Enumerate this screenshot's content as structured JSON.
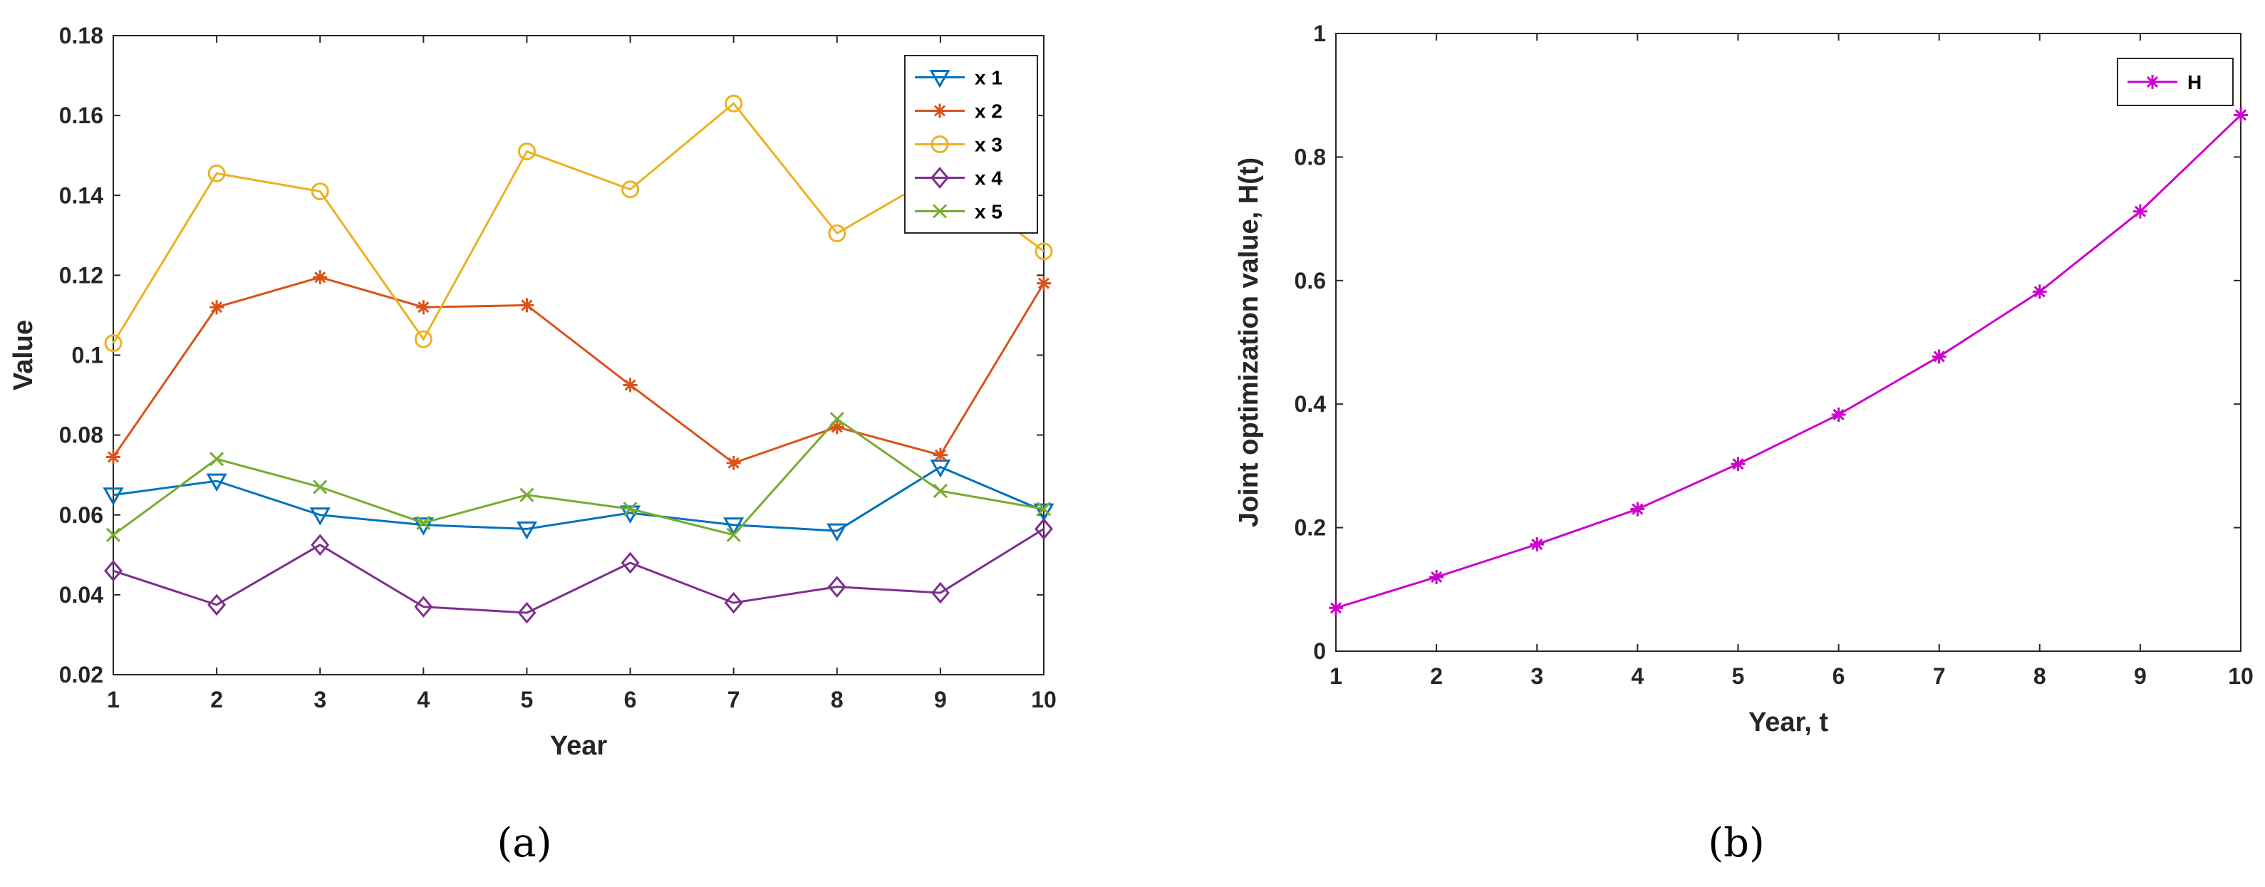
{
  "chart_data": [
    {
      "type": "line",
      "caption": "(a)",
      "xlabel": "Year",
      "ylabel": "Value",
      "x": [
        1,
        2,
        3,
        4,
        5,
        6,
        7,
        8,
        9,
        10
      ],
      "xlim": [
        1,
        10
      ],
      "ylim": [
        0.02,
        0.18
      ],
      "xticks": [
        "1",
        "2",
        "3",
        "4",
        "5",
        "6",
        "7",
        "8",
        "9",
        "10"
      ],
      "yticks": [
        "0.02",
        "0.04",
        "0.06",
        "0.08",
        "0.1",
        "0.12",
        "0.14",
        "0.16",
        "0.18"
      ],
      "legend_position": "top-right",
      "series": [
        {
          "name": "x 1",
          "marker": "triangle-down",
          "color": "#0072BD",
          "values": [
            0.065,
            0.0685,
            0.06,
            0.0575,
            0.0565,
            0.0605,
            0.0575,
            0.056,
            0.072,
            0.061
          ]
        },
        {
          "name": "x 2",
          "marker": "asterisk",
          "color": "#D95319",
          "values": [
            0.0745,
            0.112,
            0.1195,
            0.112,
            0.1125,
            0.0925,
            0.073,
            0.082,
            0.075,
            0.118
          ]
        },
        {
          "name": "x 3",
          "marker": "circle",
          "color": "#EDB120",
          "values": [
            0.103,
            0.1455,
            0.141,
            0.104,
            0.151,
            0.1415,
            0.163,
            0.1305,
            0.1455,
            0.126
          ]
        },
        {
          "name": "x 4",
          "marker": "diamond",
          "color": "#7E2F8E",
          "values": [
            0.046,
            0.0375,
            0.0525,
            0.037,
            0.0355,
            0.048,
            0.038,
            0.042,
            0.0405,
            0.0565
          ]
        },
        {
          "name": "x 5",
          "marker": "x",
          "color": "#77AC30",
          "values": [
            0.055,
            0.074,
            0.067,
            0.058,
            0.065,
            0.0615,
            0.055,
            0.084,
            0.066,
            0.0615
          ]
        }
      ]
    },
    {
      "type": "line",
      "caption": "(b)",
      "xlabel": "Year, t",
      "ylabel": "Joint optimization value, H(t)",
      "x": [
        1,
        2,
        3,
        4,
        5,
        6,
        7,
        8,
        9,
        10
      ],
      "xlim": [
        1,
        10
      ],
      "ylim": [
        0,
        1
      ],
      "xticks": [
        "1",
        "2",
        "3",
        "4",
        "5",
        "6",
        "7",
        "8",
        "9",
        "10"
      ],
      "yticks": [
        "0",
        "0.2",
        "0.4",
        "0.6",
        "0.8",
        "1"
      ],
      "legend_position": "top-right",
      "series": [
        {
          "name": "H",
          "marker": "asterisk",
          "color": "#CC00CC",
          "values": [
            0.07,
            0.12,
            0.173,
            0.23,
            0.303,
            0.383,
            0.477,
            0.582,
            0.712,
            0.868
          ]
        }
      ]
    }
  ]
}
